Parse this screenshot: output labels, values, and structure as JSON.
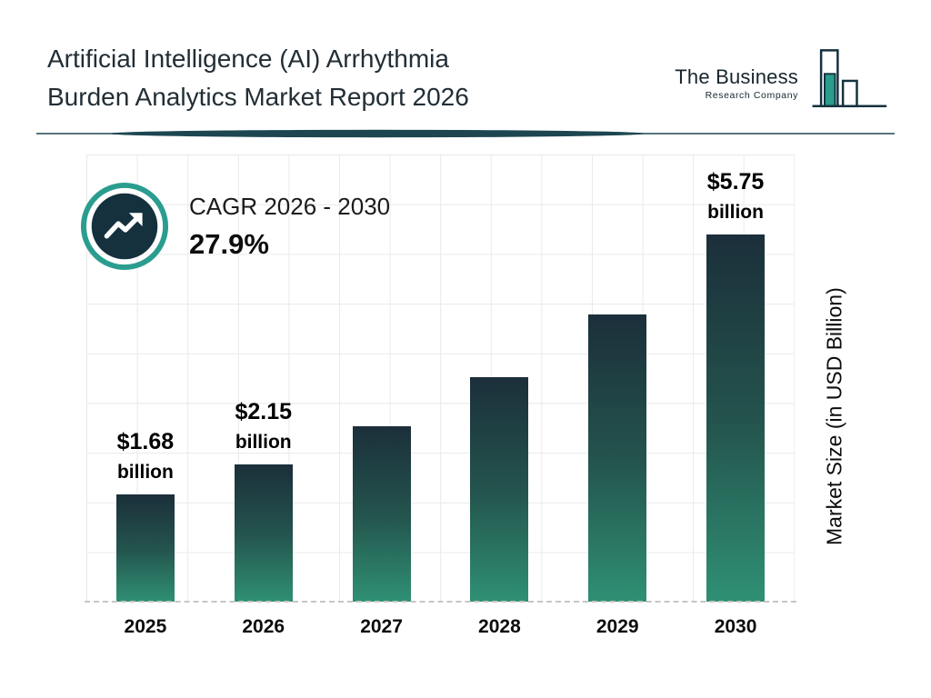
{
  "header": {
    "title_line1": "Artificial Intelligence (AI) Arrhythmia",
    "title_line2": "Burden Analytics Market Report 2026",
    "logo": {
      "name": "The Business",
      "subtitle": "Research Company",
      "icon": "bar-chart-logo-icon"
    }
  },
  "cagr": {
    "icon": "trending-up-icon",
    "label": "CAGR 2026 - 2030",
    "value": "27.9%"
  },
  "chart_data": {
    "type": "bar",
    "title": "Artificial Intelligence (AI) Arrhythmia Burden Analytics Market Report 2026",
    "categories": [
      "2025",
      "2026",
      "2027",
      "2028",
      "2029",
      "2030"
    ],
    "values": [
      1.68,
      2.15,
      2.75,
      3.52,
      4.5,
      5.75
    ],
    "bar_labels": [
      {
        "line1": "$1.68",
        "line2": "billion"
      },
      {
        "line1": "$2.15",
        "line2": "billion"
      },
      null,
      null,
      null,
      {
        "line1": "$5.75",
        "line2": "billion"
      }
    ],
    "estimated_value_indices": [
      2,
      3,
      4
    ],
    "xlabel": "",
    "ylabel": "Market Size (in USD Billion)",
    "ylim": [
      0,
      7
    ],
    "grid": true,
    "legend": false,
    "bar_color_top": "#1b2f3a",
    "bar_color_bottom": "#2f9074"
  },
  "colors": {
    "accent_teal": "#2a9d8f",
    "dark_navy": "#14313d",
    "title_text": "#222e36",
    "grid_line": "#e9e9e9",
    "divider": "#1d4650"
  }
}
